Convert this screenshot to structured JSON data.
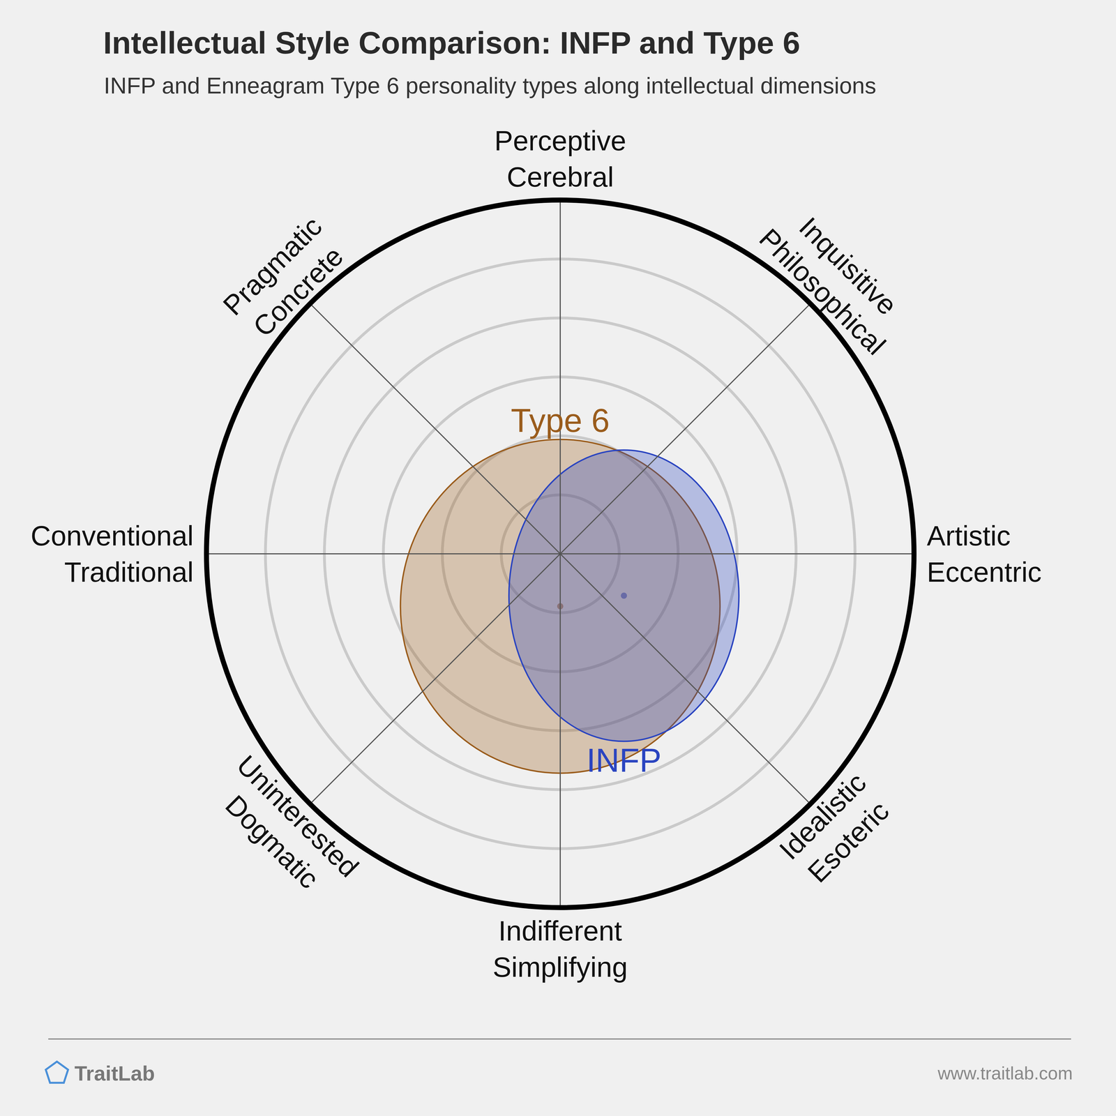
{
  "chart_data": {
    "type": "ellipse_comparison",
    "title": "Intellectual Style Comparison: INFP and Type 6",
    "subtitle": "INFP and Enneagram Type 6 personality types along intellectual dimensions",
    "dimensions": [
      [
        "Perceptive",
        "Cerebral"
      ],
      [
        "Inquisitive",
        "Philosophical"
      ],
      [
        "Artistic",
        "Eccentric"
      ],
      [
        "Idealistic",
        "Esoteric"
      ],
      [
        "Indifferent",
        "Simplifying"
      ],
      [
        "Uninterested",
        "Dogmatic"
      ],
      [
        "Conventional",
        "Traditional"
      ],
      [
        "Pragmatic",
        "Concrete"
      ]
    ],
    "xlim": [
      -6,
      6
    ],
    "ylim": [
      -6,
      6
    ],
    "rings": [
      1,
      2,
      3,
      4,
      5,
      6
    ],
    "grid": true,
    "tick_labels": false,
    "series": [
      {
        "name": "Type 6",
        "color": "#9a5c1c",
        "center": [
          0,
          -0.89
        ],
        "radii": [
          2.71,
          2.83
        ]
      },
      {
        "name": "INFP",
        "color": "#2a44c0",
        "center": [
          1.08,
          -0.71
        ],
        "radii": [
          1.95,
          2.47
        ]
      }
    ]
  },
  "footer": {
    "brand": "TraitLab",
    "url": "www.traitlab.com"
  }
}
